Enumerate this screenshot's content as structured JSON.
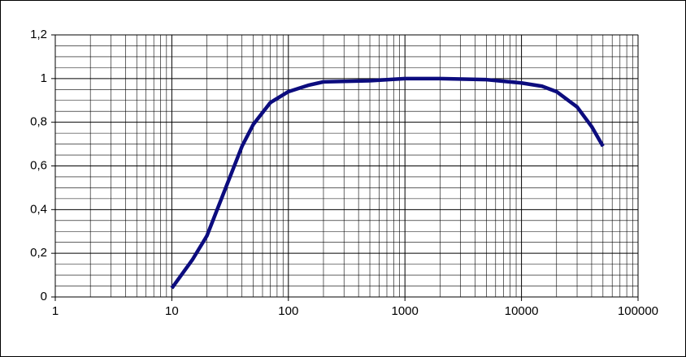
{
  "chart_data": {
    "type": "line",
    "log_x": true,
    "grid": true,
    "minor_grid": true,
    "x": [
      10,
      15,
      20,
      30,
      40,
      50,
      70,
      100,
      150,
      200,
      500,
      1000,
      2000,
      5000,
      10000,
      15000,
      20000,
      30000,
      40000,
      50000
    ],
    "series": [
      {
        "color": "#0c0c7e",
        "values": [
          0.04,
          0.17,
          0.28,
          0.52,
          0.69,
          0.79,
          0.89,
          0.94,
          0.97,
          0.985,
          0.99,
          1.0,
          1.0,
          0.995,
          0.98,
          0.965,
          0.94,
          0.87,
          0.78,
          0.69
        ]
      }
    ],
    "xlim": [
      1,
      100000
    ],
    "xticks": [
      1,
      10,
      100,
      1000,
      10000,
      100000
    ],
    "ylim": [
      0,
      1.2
    ],
    "yticks": [
      0,
      {
        "value": 0.2,
        "label": "0,2"
      },
      {
        "value": 0.4,
        "label": "0,4"
      },
      {
        "value": 0.6,
        "label": "0,6"
      },
      {
        "value": 0.8,
        "label": "0,8"
      },
      1,
      {
        "value": 1.2,
        "label": "1,2"
      }
    ]
  }
}
